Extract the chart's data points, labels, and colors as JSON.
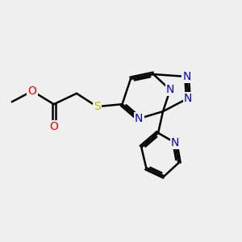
{
  "bg_color": "#efefef",
  "bond_color": "#000000",
  "bond_width": 1.8,
  "atom_colors": {
    "N": "#0000ee",
    "O": "#ff0000",
    "S": "#bbbb00",
    "C": "#000000"
  },
  "font_size": 10,
  "figsize": [
    3.0,
    3.0
  ],
  "dpi": 100,
  "xlim": [
    0,
    10
  ],
  "ylim": [
    2.0,
    8.5
  ]
}
